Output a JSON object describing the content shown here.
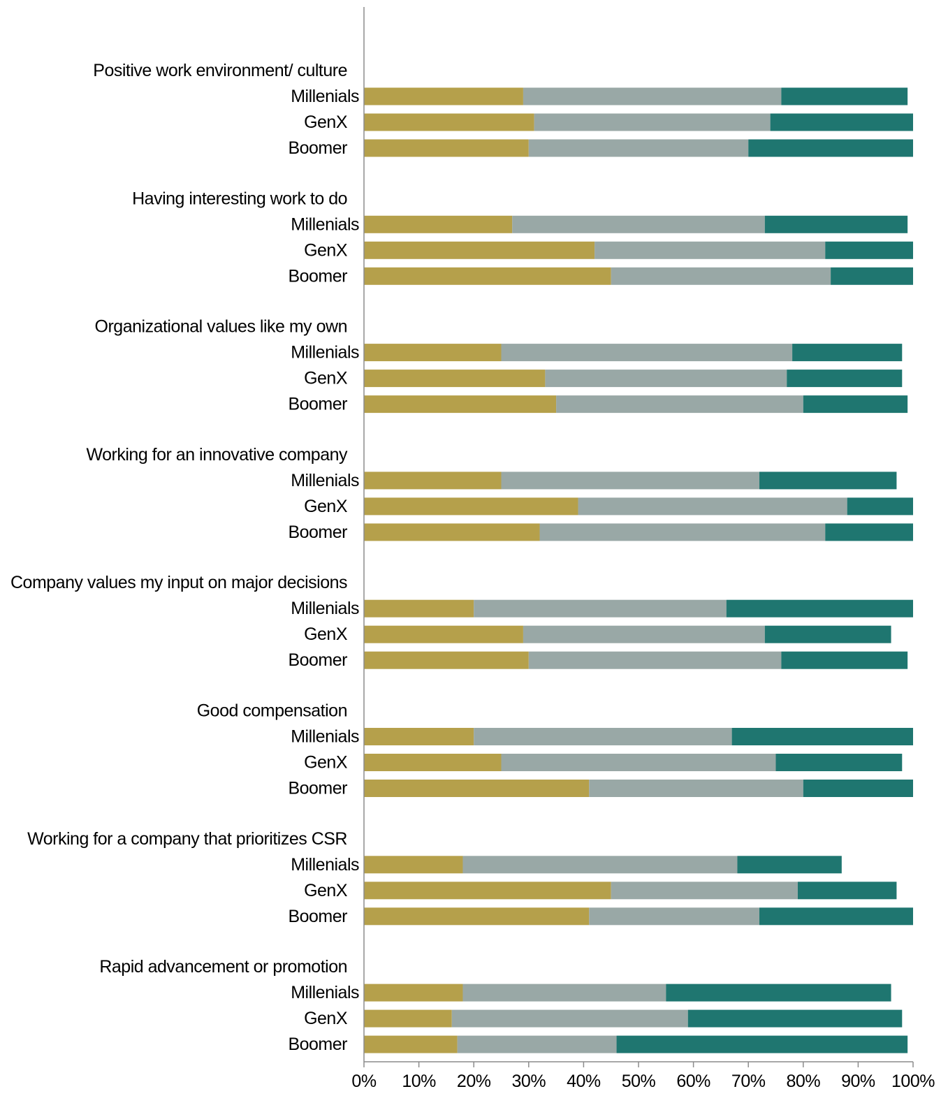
{
  "chart_data": {
    "type": "bar",
    "orientation": "horizontal",
    "stacked": true,
    "xlim": [
      0,
      100
    ],
    "x_ticks": [
      "0%",
      "10%",
      "20%",
      "30%",
      "40%",
      "50%",
      "60%",
      "70%",
      "80%",
      "90%",
      "100%"
    ],
    "grid": false,
    "legend": "none",
    "segment_colors": [
      "#b5a04b",
      "#99a8a6",
      "#1f7670"
    ],
    "groups": [
      {
        "title": "Positive work environment/ culture",
        "rows": [
          {
            "label": "Millenials",
            "values": [
              29,
              47,
              23
            ]
          },
          {
            "label": "GenX",
            "values": [
              31,
              43,
              26
            ]
          },
          {
            "label": "Boomer",
            "values": [
              30,
              40,
              30
            ]
          }
        ]
      },
      {
        "title": "Having interesting work to do",
        "rows": [
          {
            "label": "Millenials",
            "values": [
              27,
              46,
              26
            ]
          },
          {
            "label": "GenX",
            "values": [
              42,
              42,
              16
            ]
          },
          {
            "label": "Boomer",
            "values": [
              45,
              40,
              15
            ]
          }
        ]
      },
      {
        "title": "Organizational values like my own",
        "rows": [
          {
            "label": "Millenials",
            "values": [
              25,
              53,
              20
            ]
          },
          {
            "label": "GenX",
            "values": [
              33,
              44,
              21
            ]
          },
          {
            "label": "Boomer",
            "values": [
              35,
              45,
              19
            ]
          }
        ]
      },
      {
        "title": "Working for an innovative company",
        "rows": [
          {
            "label": "Millenials",
            "values": [
              25,
              47,
              25
            ]
          },
          {
            "label": "GenX",
            "values": [
              39,
              49,
              12
            ]
          },
          {
            "label": "Boomer",
            "values": [
              32,
              52,
              16
            ]
          }
        ]
      },
      {
        "title": "Company values my input on major decisions",
        "rows": [
          {
            "label": "Millenials",
            "values": [
              20,
              46,
              34
            ]
          },
          {
            "label": "GenX",
            "values": [
              29,
              44,
              23
            ]
          },
          {
            "label": "Boomer",
            "values": [
              30,
              46,
              23
            ]
          }
        ]
      },
      {
        "title": "Good compensation",
        "rows": [
          {
            "label": "Millenials",
            "values": [
              20,
              47,
              33
            ]
          },
          {
            "label": "GenX",
            "values": [
              25,
              50,
              23
            ]
          },
          {
            "label": "Boomer",
            "values": [
              41,
              39,
              20
            ]
          }
        ]
      },
      {
        "title": "Working for  a company that prioritizes CSR",
        "rows": [
          {
            "label": "Millenials",
            "values": [
              18,
              50,
              19
            ]
          },
          {
            "label": "GenX",
            "values": [
              45,
              34,
              18
            ]
          },
          {
            "label": "Boomer",
            "values": [
              41,
              31,
              28
            ]
          }
        ]
      },
      {
        "title": "Rapid advancement or promotion",
        "rows": [
          {
            "label": "Millenials",
            "values": [
              18,
              37,
              41
            ]
          },
          {
            "label": "GenX",
            "values": [
              16,
              43,
              39
            ]
          },
          {
            "label": "Boomer",
            "values": [
              17,
              29,
              53
            ]
          }
        ]
      }
    ]
  }
}
